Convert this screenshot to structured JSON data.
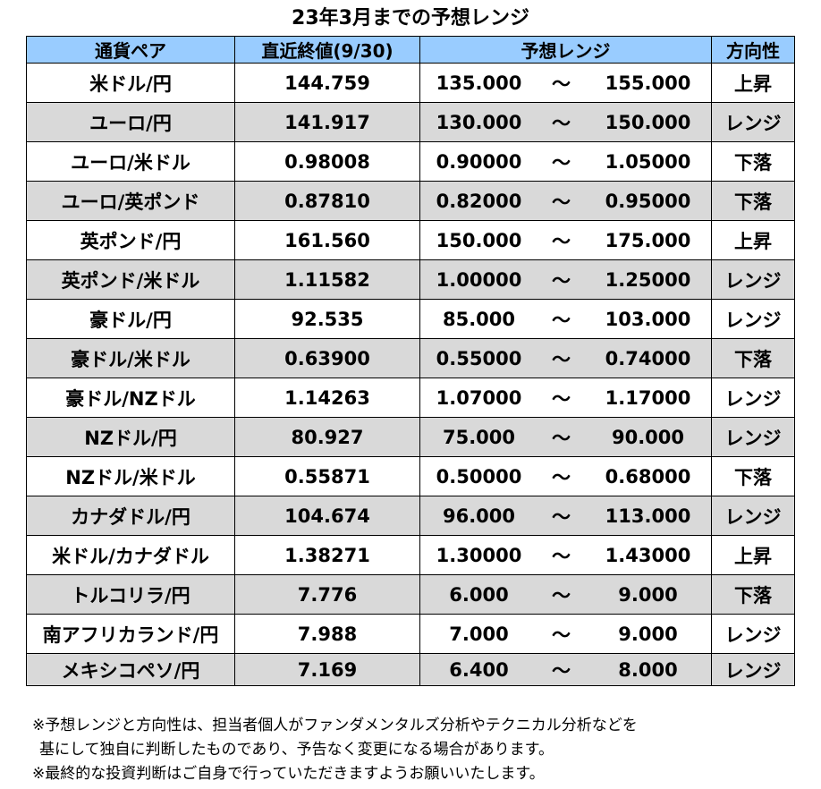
{
  "title": "23年3月までの予想レンジ",
  "headers": {
    "pair": "通貨ペア",
    "close": "直近終値(9/30)",
    "range": "予想レンジ",
    "direction": "方向性"
  },
  "tilde": "～",
  "rows": [
    {
      "pair": "米ドル/円",
      "close": "144.759",
      "low": "135.000",
      "high": "155.000",
      "direction": "上昇"
    },
    {
      "pair": "ユーロ/円",
      "close": "141.917",
      "low": "130.000",
      "high": "150.000",
      "direction": "レンジ"
    },
    {
      "pair": "ユーロ/米ドル",
      "close": "0.98008",
      "low": "0.90000",
      "high": "1.05000",
      "direction": "下落"
    },
    {
      "pair": "ユーロ/英ポンド",
      "close": "0.87810",
      "low": "0.82000",
      "high": "0.95000",
      "direction": "下落"
    },
    {
      "pair": "英ポンド/円",
      "close": "161.560",
      "low": "150.000",
      "high": "175.000",
      "direction": "上昇"
    },
    {
      "pair": "英ポンド/米ドル",
      "close": "1.11582",
      "low": "1.00000",
      "high": "1.25000",
      "direction": "レンジ"
    },
    {
      "pair": "豪ドル/円",
      "close": "92.535",
      "low": "85.000",
      "high": "103.000",
      "direction": "レンジ"
    },
    {
      "pair": "豪ドル/米ドル",
      "close": "0.63900",
      "low": "0.55000",
      "high": "0.74000",
      "direction": "下落"
    },
    {
      "pair": "豪ドル/NZドル",
      "close": "1.14263",
      "low": "1.07000",
      "high": "1.17000",
      "direction": "レンジ"
    },
    {
      "pair": "NZドル/円",
      "close": "80.927",
      "low": "75.000",
      "high": "90.000",
      "direction": "レンジ"
    },
    {
      "pair": "NZドル/米ドル",
      "close": "0.55871",
      "low": "0.50000",
      "high": "0.68000",
      "direction": "下落"
    },
    {
      "pair": "カナダドル/円",
      "close": "104.674",
      "low": "96.000",
      "high": "113.000",
      "direction": "レンジ"
    },
    {
      "pair": "米ドル/カナダドル",
      "close": "1.38271",
      "low": "1.30000",
      "high": "1.43000",
      "direction": "上昇"
    },
    {
      "pair": "トルコリラ/円",
      "close": "7.776",
      "low": "6.000",
      "high": "9.000",
      "direction": "下落"
    },
    {
      "pair": "南アフリカランド/円",
      "close": "7.988",
      "low": "7.000",
      "high": "9.000",
      "direction": "レンジ"
    },
    {
      "pair": "メキシコペソ/円",
      "close": "7.169",
      "low": "6.400",
      "high": "8.000",
      "direction": "レンジ"
    }
  ],
  "notes": {
    "line1": "※予想レンジと方向性は、担当者個人がファンダメンタルズ分析やテクニカル分析などを",
    "line2": "基にして独自に判断したものであり、予告なく変更になる場合があります。",
    "line3": "※最終的な投資判断はご自身で行っていただきますようお願いいたします。"
  }
}
